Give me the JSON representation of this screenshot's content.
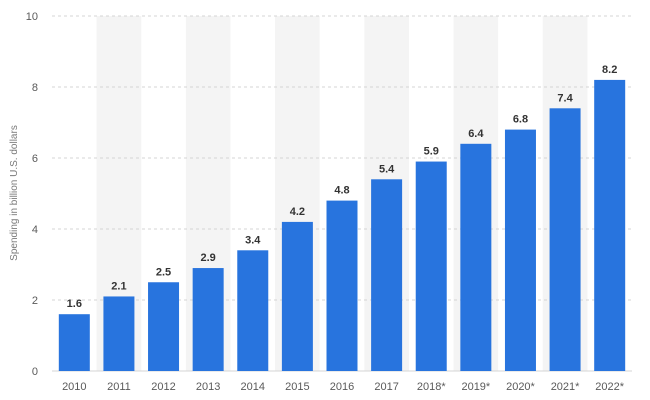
{
  "chart_data": {
    "type": "bar",
    "categories": [
      "2010",
      "2011",
      "2012",
      "2013",
      "2014",
      "2015",
      "2016",
      "2017",
      "2018*",
      "2019*",
      "2020*",
      "2021*",
      "2022*"
    ],
    "values": [
      1.6,
      2.1,
      2.5,
      2.9,
      3.4,
      4.2,
      4.8,
      5.4,
      5.9,
      6.4,
      6.8,
      7.4,
      8.2
    ],
    "data_labels": [
      "1.6",
      "2.1",
      "2.5",
      "2.9",
      "3.4",
      "4.2",
      "4.8",
      "5.4",
      "5.9",
      "6.4",
      "6.8",
      "7.4",
      "8.2"
    ],
    "ylabel": "Spending in billion U.S. dollars",
    "ylim": [
      0,
      10
    ],
    "yticks": [
      0,
      2,
      4,
      6,
      8,
      10
    ],
    "grid": "horizontal dashed",
    "alternating_column_shading": true,
    "colors": {
      "bar": "#2874de",
      "shade": "#f4f4f4",
      "grid": "#d4d4d4"
    }
  }
}
